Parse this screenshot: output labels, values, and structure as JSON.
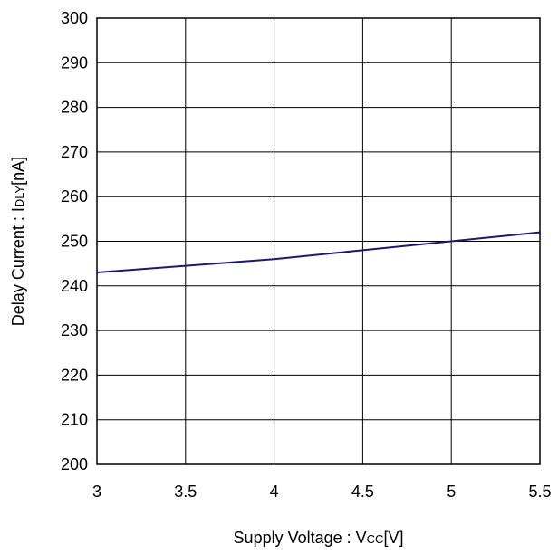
{
  "chart_data": {
    "type": "line",
    "title": "",
    "xlabel": {
      "prefix": "Supply Voltage : V",
      "subscript": "CC",
      "suffix": "[V]"
    },
    "ylabel": {
      "prefix": "Delay Current : I",
      "subscript": "DLY",
      "suffix": "[nA]"
    },
    "xlim": [
      3,
      5.5
    ],
    "ylim": [
      200,
      300
    ],
    "x_ticks": [
      3,
      3.5,
      4,
      4.5,
      5,
      5.5
    ],
    "x_tick_labels": [
      "3",
      "3.5",
      "4",
      "4.5",
      "5",
      "5.5"
    ],
    "y_ticks": [
      200,
      210,
      220,
      230,
      240,
      250,
      260,
      270,
      280,
      290,
      300
    ],
    "y_tick_labels": [
      "200",
      "210",
      "220",
      "230",
      "240",
      "250",
      "260",
      "270",
      "280",
      "290",
      "300"
    ],
    "grid": true,
    "legend": "none",
    "series": [
      {
        "color": "#1a1a6e",
        "x": [
          3,
          3.5,
          4,
          4.5,
          5,
          5.5
        ],
        "y": [
          243,
          244.5,
          246,
          248,
          250,
          252
        ]
      }
    ]
  }
}
